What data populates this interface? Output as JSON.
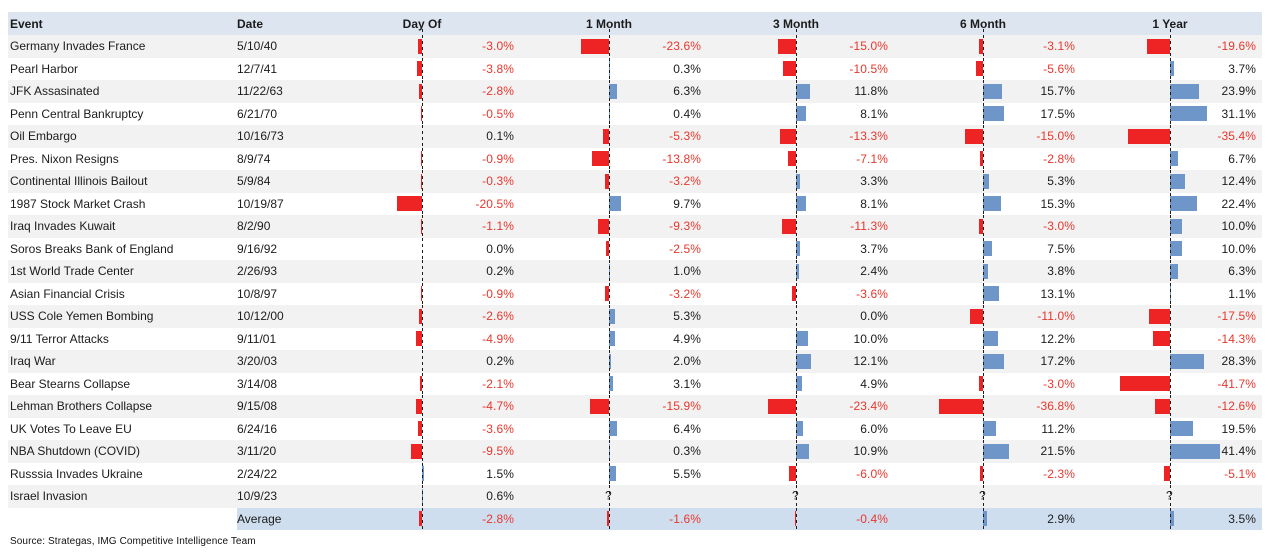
{
  "header": {
    "event_label": "Event",
    "date_label": "Date",
    "periods": [
      "Day Of",
      "1 Month",
      "3 Month",
      "6 Month",
      "1 Year"
    ]
  },
  "unknown_marker": "?",
  "average_label": "Average",
  "source": "Source: Strategas, IMG Competitive Intelligence Team",
  "colors": {
    "negative_text": "#e8372c",
    "negative_bar": "#ee2424",
    "positive_bar": "#6e96c8",
    "header_bg": "#dde5f1",
    "stripe_bg": "#f2f2f2",
    "average_row_bg": "#cfdeef",
    "text": "#1b1b1b"
  },
  "chart_data": {
    "type": "table",
    "title": "",
    "columns": [
      "Event",
      "Date",
      "Day Of",
      "1 Month",
      "3 Month",
      "6 Month",
      "1 Year"
    ],
    "value_format": "percent_one_decimal",
    "bar_style": "red negative left of dashed zero axis, blue positive right of axis",
    "rows": [
      [
        "Germany Invades France",
        "5/10/40",
        -3.0,
        -23.6,
        -15.0,
        -3.1,
        -19.6
      ],
      [
        "Pearl Harbor",
        "12/7/41",
        -3.8,
        0.3,
        -10.5,
        -5.6,
        3.7
      ],
      [
        "JFK Assasinated",
        "11/22/63",
        -2.8,
        6.3,
        11.8,
        15.7,
        23.9
      ],
      [
        "Penn Central Bankruptcy",
        "6/21/70",
        -0.5,
        0.4,
        8.1,
        17.5,
        31.1
      ],
      [
        "Oil Embargo",
        "10/16/73",
        0.1,
        -5.3,
        -13.3,
        -15.0,
        -35.4
      ],
      [
        "Pres. Nixon Resigns",
        "8/9/74",
        -0.9,
        -13.8,
        -7.1,
        -2.8,
        6.7
      ],
      [
        "Continental Illinois Bailout",
        "5/9/84",
        -0.3,
        -3.2,
        3.3,
        5.3,
        12.4
      ],
      [
        "1987 Stock Market Crash",
        "10/19/87",
        -20.5,
        9.7,
        8.1,
        15.3,
        22.4
      ],
      [
        "Iraq Invades Kuwait",
        "8/2/90",
        -1.1,
        -9.3,
        -11.3,
        -3.0,
        10.0
      ],
      [
        "Soros Breaks Bank of England",
        "9/16/92",
        0.0,
        -2.5,
        3.7,
        7.5,
        10.0
      ],
      [
        "1st World Trade Center",
        "2/26/93",
        0.2,
        1.0,
        2.4,
        3.8,
        6.3
      ],
      [
        "Asian Financial Crisis",
        "10/8/97",
        -0.9,
        -3.2,
        -3.6,
        13.1,
        1.1
      ],
      [
        "USS Cole Yemen Bombing",
        "10/12/00",
        -2.6,
        5.3,
        0.0,
        -11.0,
        -17.5
      ],
      [
        "9/11 Terror Attacks",
        "9/11/01",
        -4.9,
        4.9,
        10.0,
        12.2,
        -14.3
      ],
      [
        "Iraq War",
        "3/20/03",
        0.2,
        2.0,
        12.1,
        17.2,
        28.3
      ],
      [
        "Bear Stearns Collapse",
        "3/14/08",
        -2.1,
        3.1,
        4.9,
        -3.0,
        -41.7
      ],
      [
        "Lehman Brothers Collapse",
        "9/15/08",
        -4.7,
        -15.9,
        -23.4,
        -36.8,
        -12.6
      ],
      [
        "UK Votes To Leave EU",
        "6/24/16",
        -3.6,
        6.4,
        6.0,
        11.2,
        19.5
      ],
      [
        "NBA Shutdown (COVID)",
        "3/11/20",
        -9.5,
        0.3,
        10.9,
        21.5,
        41.4
      ],
      [
        "Russsia Invades Ukraine",
        "2/24/22",
        1.5,
        5.5,
        -6.0,
        -2.3,
        -5.1
      ],
      [
        "Israel Invasion",
        "10/9/23",
        0.6,
        null,
        null,
        null,
        null
      ]
    ],
    "average_row": [
      "",
      "Average",
      -2.8,
      -1.6,
      -0.4,
      2.9,
      3.5
    ]
  }
}
